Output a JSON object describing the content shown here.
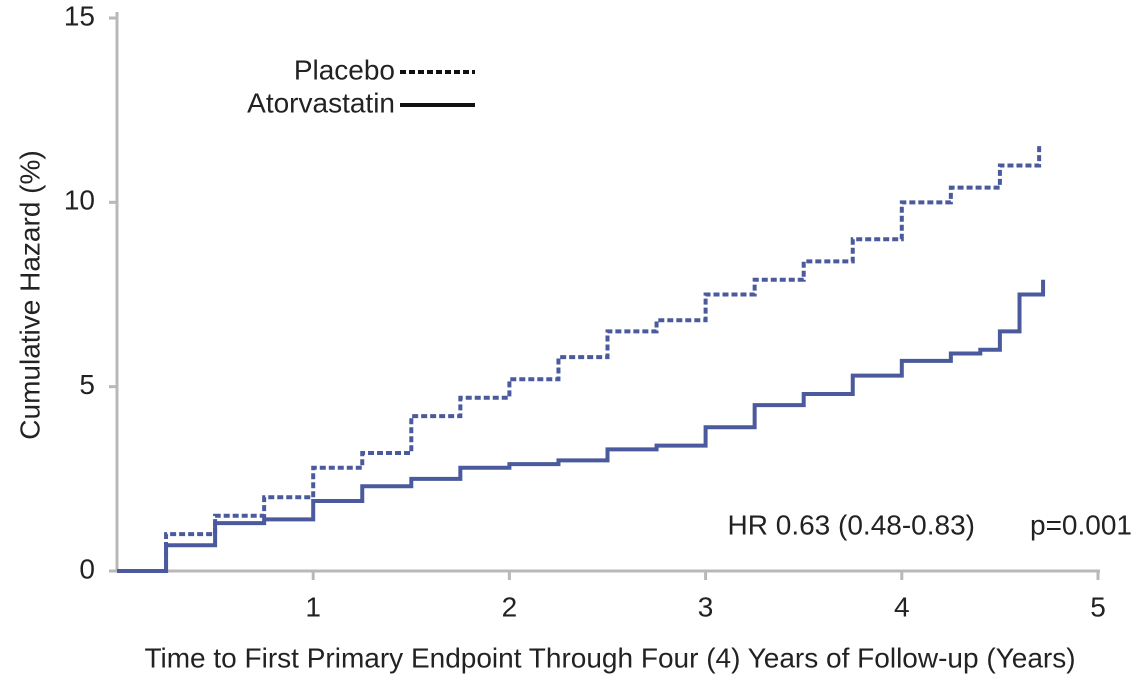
{
  "chart_data": {
    "type": "line",
    "x_label": "Time to First Primary Endpoint Through Four (4) Years of Follow-up (Years)",
    "y_label": "Cumulative Hazard (%)",
    "xlim": [
      0,
      5
    ],
    "xticks": [
      1,
      2,
      3,
      4,
      5
    ],
    "ylim": [
      0,
      15
    ],
    "yticks": [
      0,
      5,
      10,
      15
    ],
    "annotations": [
      "HR 0.63 (0.48-0.83)",
      "p=0.001"
    ],
    "series": [
      {
        "name": "Placebo",
        "color": "#4a5a9c",
        "line_style": "dashed",
        "x": [
          0,
          0.25,
          0.5,
          0.75,
          1,
          1.25,
          1.5,
          1.75,
          2,
          2.25,
          2.5,
          2.75,
          3,
          3.25,
          3.5,
          3.75,
          4,
          4.25,
          4.5,
          4.7
        ],
        "values": [
          0,
          1.0,
          1.5,
          2.0,
          2.8,
          3.2,
          4.2,
          4.7,
          5.2,
          5.8,
          6.5,
          6.8,
          7.5,
          7.9,
          8.4,
          9.0,
          10.0,
          10.4,
          11.0,
          11.6
        ]
      },
      {
        "name": "Atorvastatin",
        "color": "#4a5a9c",
        "line_style": "solid",
        "x": [
          0,
          0.25,
          0.45,
          0.5,
          0.75,
          1,
          1.25,
          1.5,
          1.75,
          2,
          2.25,
          2.5,
          2.75,
          3,
          3.25,
          3.5,
          3.75,
          4,
          4.25,
          4.4,
          4.5,
          4.6,
          4.72
        ],
        "values": [
          0,
          0.7,
          0.7,
          1.3,
          1.4,
          1.9,
          2.3,
          2.5,
          2.8,
          2.9,
          3.0,
          3.3,
          3.4,
          3.9,
          4.5,
          4.8,
          5.3,
          5.7,
          5.9,
          6.0,
          6.5,
          7.5,
          7.9
        ]
      }
    ]
  }
}
